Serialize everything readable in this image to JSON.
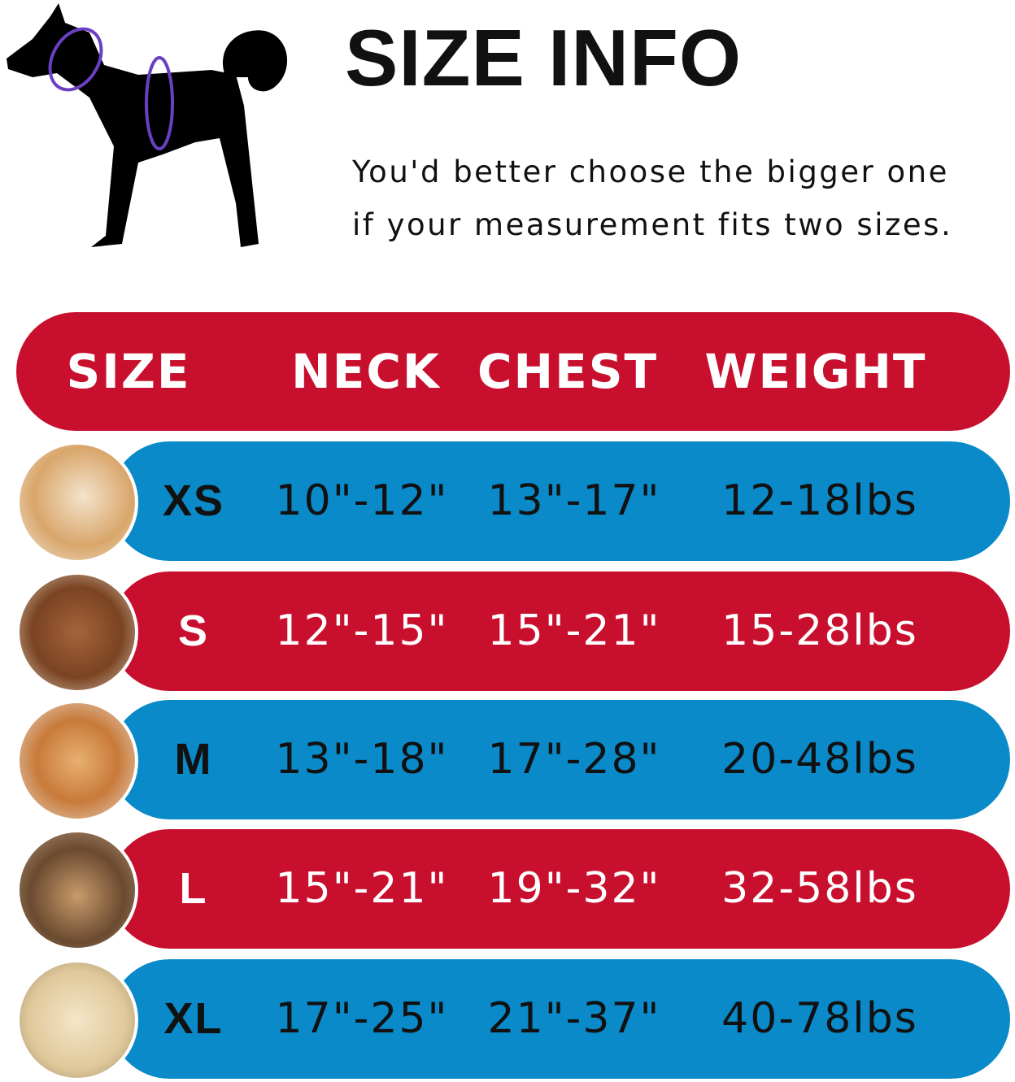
{
  "title": "SIZE INFO",
  "subtitle_lines": [
    "You'd better choose the bigger one",
    "if your measurement fits two sizes."
  ],
  "colors": {
    "red": "#c8102e",
    "blue": "#0a8ac9",
    "measure_line": "#6a3fc2"
  },
  "table": {
    "headers": [
      "SIZE",
      "NECK",
      "CHEST",
      "WEIGHT"
    ],
    "rows": [
      {
        "size": "XS",
        "neck": "10\"-12\"",
        "chest": "13\"-17\"",
        "weight": "12-18lbs",
        "color": "blue",
        "photo": "pomeranian-photo"
      },
      {
        "size": "S",
        "neck": "12\"-15\"",
        "chest": "15\"-21\"",
        "weight": "15-28lbs",
        "color": "red",
        "photo": "poodle-photo"
      },
      {
        "size": "M",
        "neck": "13\"-18\"",
        "chest": "17\"-28\"",
        "weight": "20-48lbs",
        "color": "blue",
        "photo": "shiba-photo"
      },
      {
        "size": "L",
        "neck": "15\"-21\"",
        "chest": "19\"-32\"",
        "weight": "32-58lbs",
        "color": "red",
        "photo": "french-bulldog-photo"
      },
      {
        "size": "XL",
        "neck": "17\"-25\"",
        "chest": "21\"-37\"",
        "weight": "40-78lbs",
        "color": "blue",
        "photo": "labrador-photo"
      }
    ]
  }
}
